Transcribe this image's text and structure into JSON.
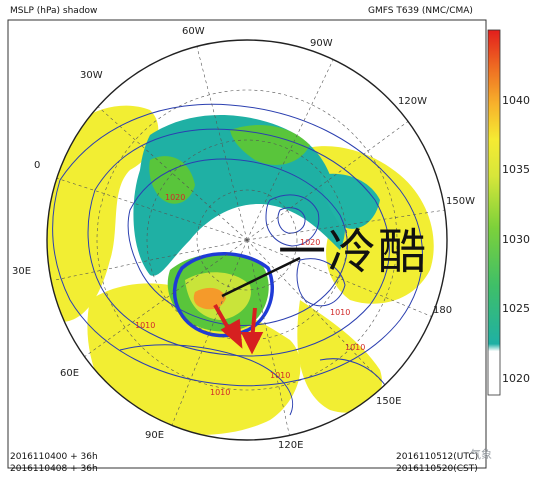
{
  "header": {
    "left_title": "MSLP (hPa) shadow",
    "right_title": "GMFS T639 (NMC/CMA)"
  },
  "longitudes": {
    "w60": "60W",
    "w90": "90W",
    "w30": "30W",
    "w120": "120W",
    "zero": "0",
    "w150": "150W",
    "e30": "30E",
    "d180": "180",
    "e60": "60E",
    "e150": "150E",
    "e90": "90E",
    "e120": "120E"
  },
  "isobar_labels": [
    "1010",
    "1010",
    "1010",
    "1010",
    "1010",
    "1020",
    "1020"
  ],
  "annotation": {
    "text": "一冷酷"
  },
  "footer": {
    "left_line1": "2016110400 + 36h",
    "left_line2": "2016110408 + 36h",
    "right_line1": "2016110512(UTC)",
    "right_line2": "2016110520(CST)"
  },
  "watermark": "气象",
  "colorbar": {
    "labels": [
      "1040",
      "1035",
      "1030",
      "1025",
      "1020"
    ],
    "colors": [
      "#ffffff",
      "#21b4a6",
      "#59c53b",
      "#c9e43a",
      "#f2ee33",
      "#f59a2a",
      "#e8231e"
    ]
  }
}
